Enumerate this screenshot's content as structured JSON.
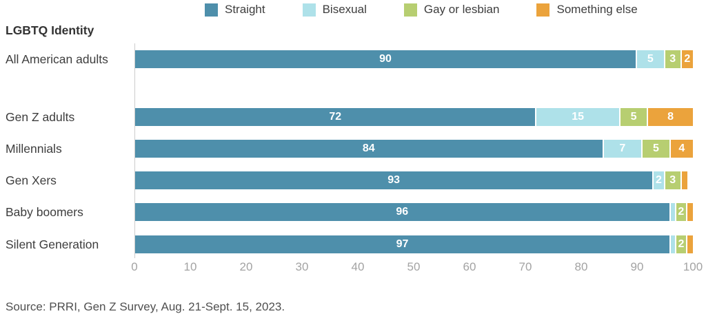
{
  "title": "LGBTQ Identity",
  "source": "Source: PRRI, Gen Z Survey, Aug. 21-Sept. 15, 2023.",
  "colors": {
    "straight": "#4e8fab",
    "bisexual": "#aee1e9",
    "gay_or_lesbian": "#b7ce71",
    "something_else": "#eba33c",
    "axis_line": "#cccccc",
    "tick_text": "#a3a3a3",
    "bar_value_text": "#ffffff"
  },
  "legend": [
    {
      "label": "Straight",
      "color": "#4e8fab"
    },
    {
      "label": "Bisexual",
      "color": "#aee1e9"
    },
    {
      "label": "Gay or lesbian",
      "color": "#b7ce71"
    },
    {
      "label": "Something else",
      "color": "#eba33c"
    }
  ],
  "axis": {
    "min": 0,
    "max": 100,
    "ticks": [
      0,
      10,
      20,
      30,
      40,
      50,
      60,
      70,
      80,
      90,
      100
    ]
  },
  "rows": [
    {
      "label": "All American adults",
      "segments": [
        {
          "key": "straight",
          "color": "#4e8fab",
          "value": 90,
          "label": "90"
        },
        {
          "key": "bisexual",
          "color": "#aee1e9",
          "value": 5,
          "label": "5"
        },
        {
          "key": "gay_or_lesbian",
          "color": "#b7ce71",
          "value": 3,
          "label": "3"
        },
        {
          "key": "something_else",
          "color": "#eba33c",
          "value": 2,
          "label": "2"
        }
      ]
    },
    {
      "label": "Gen Z adults",
      "segments": [
        {
          "key": "straight",
          "color": "#4e8fab",
          "value": 72,
          "label": "72"
        },
        {
          "key": "bisexual",
          "color": "#aee1e9",
          "value": 15,
          "label": "15"
        },
        {
          "key": "gay_or_lesbian",
          "color": "#b7ce71",
          "value": 5,
          "label": "5"
        },
        {
          "key": "something_else",
          "color": "#eba33c",
          "value": 8,
          "label": "8"
        }
      ]
    },
    {
      "label": "Millennials",
      "segments": [
        {
          "key": "straight",
          "color": "#4e8fab",
          "value": 84,
          "label": "84"
        },
        {
          "key": "bisexual",
          "color": "#aee1e9",
          "value": 7,
          "label": "7"
        },
        {
          "key": "gay_or_lesbian",
          "color": "#b7ce71",
          "value": 5,
          "label": "5"
        },
        {
          "key": "something_else",
          "color": "#eba33c",
          "value": 4,
          "label": "4"
        }
      ]
    },
    {
      "label": "Gen Xers",
      "segments": [
        {
          "key": "straight",
          "color": "#4e8fab",
          "value": 93,
          "label": "93"
        },
        {
          "key": "bisexual",
          "color": "#aee1e9",
          "value": 2,
          "label": "2"
        },
        {
          "key": "gay_or_lesbian",
          "color": "#b7ce71",
          "value": 3,
          "label": "3"
        },
        {
          "key": "something_else",
          "color": "#eba33c",
          "value": 1,
          "label": ""
        }
      ]
    },
    {
      "label": "Baby boomers",
      "segments": [
        {
          "key": "straight",
          "color": "#4e8fab",
          "value": 96,
          "label": "96"
        },
        {
          "key": "bisexual",
          "color": "#aee1e9",
          "value": 1,
          "label": ""
        },
        {
          "key": "gay_or_lesbian",
          "color": "#b7ce71",
          "value": 2,
          "label": "2"
        },
        {
          "key": "something_else",
          "color": "#eba33c",
          "value": 1,
          "label": ""
        }
      ]
    },
    {
      "label": "Silent Generation",
      "segments": [
        {
          "key": "straight",
          "color": "#4e8fab",
          "value": 97,
          "label": "97"
        },
        {
          "key": "bisexual",
          "color": "#aee1e9",
          "value": 1,
          "label": ""
        },
        {
          "key": "gay_or_lesbian",
          "color": "#b7ce71",
          "value": 2,
          "label": "2"
        },
        {
          "key": "something_else",
          "color": "#eba33c",
          "value": 1,
          "label": ""
        }
      ]
    }
  ],
  "chart_data": {
    "type": "bar",
    "orientation": "horizontal-stacked",
    "title": "LGBTQ Identity",
    "categories": [
      "All American adults",
      "Gen Z adults",
      "Millennials",
      "Gen Xers",
      "Baby boomers",
      "Silent Generation"
    ],
    "series": [
      {
        "name": "Straight",
        "values": [
          90,
          72,
          84,
          93,
          96,
          97
        ]
      },
      {
        "name": "Bisexual",
        "values": [
          5,
          15,
          7,
          2,
          1,
          1
        ]
      },
      {
        "name": "Gay or lesbian",
        "values": [
          3,
          5,
          5,
          3,
          2,
          2
        ]
      },
      {
        "name": "Something else",
        "values": [
          2,
          8,
          4,
          1,
          1,
          1
        ]
      }
    ],
    "xlabel": "",
    "ylabel": "",
    "xlim": [
      0,
      100
    ],
    "x_ticks": [
      0,
      10,
      20,
      30,
      40,
      50,
      60,
      70,
      80,
      90,
      100
    ],
    "grid": false,
    "legend_position": "top-center",
    "annotations": "segment values printed in white inside bars; segments of ~1% unlabeled",
    "source": "Source: PRRI, Gen Z Survey, Aug. 21-Sept. 15, 2023."
  }
}
